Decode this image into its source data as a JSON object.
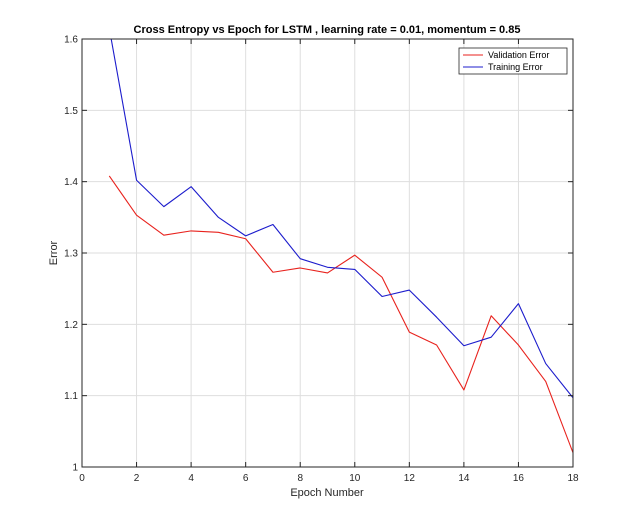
{
  "chart_data": {
    "type": "line",
    "title": "Cross Entropy vs Epoch for LSTM , learning rate = 0.01, momentum = 0.85",
    "xlabel": "Epoch Number",
    "ylabel": "Error",
    "xlim": [
      0,
      18
    ],
    "ylim": [
      1,
      1.6
    ],
    "xticks": [
      0,
      2,
      4,
      6,
      8,
      10,
      12,
      14,
      16,
      18
    ],
    "yticks": [
      1,
      1.1,
      1.2,
      1.3,
      1.4,
      1.5,
      1.6
    ],
    "xtick_labels": [
      "0",
      "2",
      "4",
      "6",
      "8",
      "10",
      "12",
      "14",
      "16",
      "18"
    ],
    "ytick_labels": [
      "1",
      "1.1",
      "1.2",
      "1.3",
      "1.4",
      "1.5",
      "1.6"
    ],
    "grid": true,
    "legend_position": "top-right",
    "x": [
      1,
      2,
      3,
      4,
      5,
      6,
      7,
      8,
      9,
      10,
      11,
      12,
      13,
      14,
      15,
      16,
      17,
      18
    ],
    "series": [
      {
        "name": "Validation Error",
        "color": "#e8221d",
        "values": [
          1.408,
          1.353,
          1.325,
          1.331,
          1.329,
          1.32,
          1.273,
          1.279,
          1.272,
          1.297,
          1.266,
          1.189,
          1.171,
          1.108,
          1.212,
          1.171,
          1.12,
          1.02
        ]
      },
      {
        "name": "Training Error",
        "color": "#1c1ccc",
        "values": [
          1.615,
          1.402,
          1.365,
          1.393,
          1.35,
          1.324,
          1.34,
          1.292,
          1.28,
          1.277,
          1.239,
          1.248,
          1.21,
          1.17,
          1.182,
          1.229,
          1.145,
          1.097
        ]
      }
    ]
  }
}
